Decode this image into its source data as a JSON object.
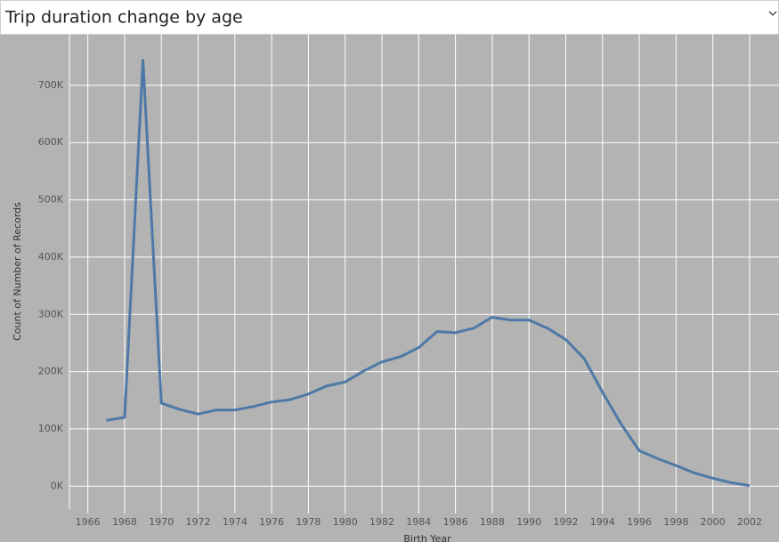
{
  "chart_data": {
    "type": "line",
    "title": "Trip duration change by age",
    "y_label": "Count of Number of Records",
    "x_label": "Birth Year",
    "x": [
      1967,
      1968,
      1969,
      1970,
      1971,
      1972,
      1973,
      1974,
      1975,
      1976,
      1977,
      1978,
      1979,
      1980,
      1981,
      1982,
      1983,
      1984,
      1985,
      1986,
      1987,
      1988,
      1989,
      1990,
      1991,
      1992,
      1993,
      1994,
      1995,
      1996,
      1997,
      1998,
      1999,
      2000,
      2001,
      2002
    ],
    "series": [
      {
        "name": "Count of Number of Records",
        "color": "#4e79a7",
        "values": [
          115000,
          120000,
          744000,
          145000,
          134000,
          126000,
          133000,
          133000,
          139000,
          147000,
          151000,
          161000,
          175000,
          182000,
          201000,
          217000,
          226000,
          242000,
          270000,
          268000,
          276000,
          295000,
          290000,
          290000,
          276000,
          256000,
          223000,
          164000,
          109000,
          62000,
          48000,
          36000,
          23000,
          14000,
          6000,
          1000
        ]
      }
    ],
    "xlim": [
      1965,
      2003.6
    ],
    "xticks": [
      1966,
      1968,
      1970,
      1972,
      1974,
      1976,
      1978,
      1980,
      1982,
      1984,
      1986,
      1988,
      1990,
      1992,
      1994,
      1996,
      1998,
      2000,
      2002
    ],
    "ylim": [
      -40000,
      790000
    ],
    "yticks": [
      {
        "value": 0,
        "label": "0K"
      },
      {
        "value": 100000,
        "label": "100K"
      },
      {
        "value": 200000,
        "label": "200K"
      },
      {
        "value": 300000,
        "label": "300K"
      },
      {
        "value": 400000,
        "label": "400K"
      },
      {
        "value": 500000,
        "label": "500K"
      },
      {
        "value": 600000,
        "label": "600K"
      },
      {
        "value": 700000,
        "label": "700K"
      }
    ],
    "grid": true
  }
}
